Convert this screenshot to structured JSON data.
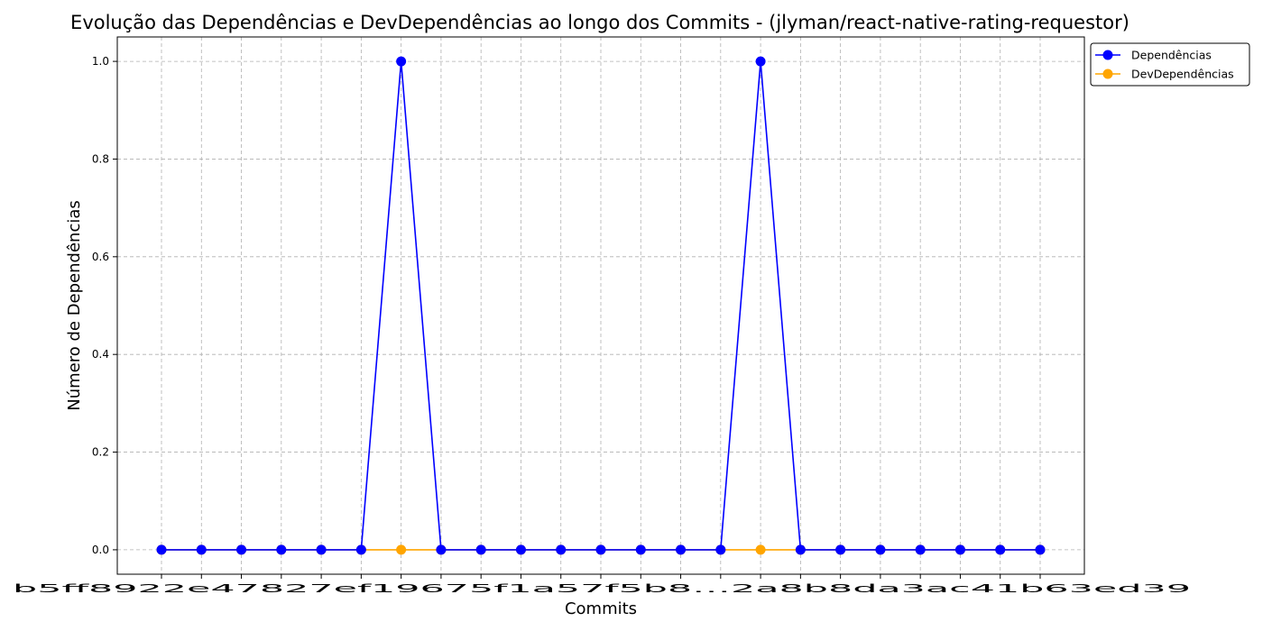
{
  "chart_data": {
    "type": "line",
    "title": "Evolução das Dependências e DevDependências ao longo dos Commits - (jlyman/react-native-rating-requestor)",
    "xlabel": "Commits",
    "ylabel": "Número de Dependências",
    "ylim": [
      -0.05,
      1.05
    ],
    "y_ticks": [
      "0.0",
      "0.2",
      "0.4",
      "0.6",
      "0.8",
      "1.0"
    ],
    "grid": true,
    "legend_position": "outside-top-right",
    "x_tick_labels_visible": [
      "b5ff892",
      "2e4782",
      "7ef19675",
      "f1a5",
      "7f5b8",
      "…",
      "2a8b8da3",
      "ac41b63ed39"
    ],
    "x_count": 23,
    "series": [
      {
        "name": "Dependências",
        "color": "#0000ff",
        "values": [
          0,
          0,
          0,
          0,
          0,
          0,
          1,
          0,
          0,
          0,
          0,
          0,
          0,
          0,
          0,
          1,
          0,
          0,
          0,
          0,
          0,
          0,
          0
        ]
      },
      {
        "name": "DevDependências",
        "color": "#ffa500",
        "values": [
          0,
          0,
          0,
          0,
          0,
          0,
          0,
          0,
          0,
          0,
          0,
          0,
          0,
          0,
          0,
          0,
          0,
          0,
          0,
          0,
          0,
          0,
          0
        ]
      }
    ]
  }
}
